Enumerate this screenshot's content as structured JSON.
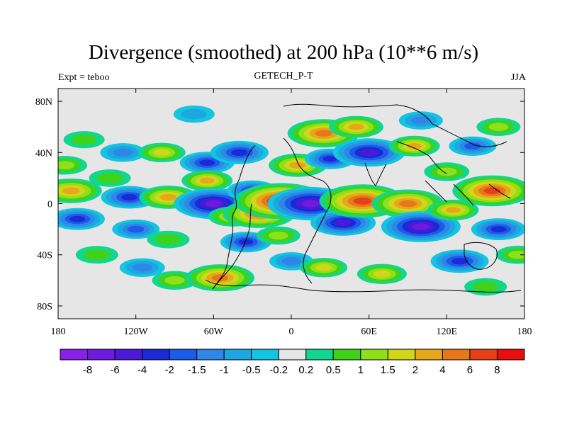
{
  "title": "Divergence (smoothed) at 200 hPa (10**6 m/s)",
  "subtitle_left": "Expt = teboo",
  "subtitle_center": "GETECH_P-T",
  "subtitle_right": "JJA",
  "chart_data": {
    "type": "heatmap",
    "projection": "cylindrical equidistant",
    "variable": "divergence",
    "level": "200 hPa",
    "units": "10**6 m/s",
    "season": "JJA",
    "xlim": [
      -180,
      180
    ],
    "ylim": [
      -90,
      90
    ],
    "x_ticks": [
      {
        "value": -180,
        "label": "180"
      },
      {
        "value": -120,
        "label": "120W"
      },
      {
        "value": -60,
        "label": "60W"
      },
      {
        "value": 0,
        "label": "0"
      },
      {
        "value": 60,
        "label": "60E"
      },
      {
        "value": 120,
        "label": "120E"
      },
      {
        "value": 180,
        "label": "180"
      }
    ],
    "y_ticks": [
      {
        "value": 80,
        "label": "80N"
      },
      {
        "value": 40,
        "label": "40N"
      },
      {
        "value": 0,
        "label": "0"
      },
      {
        "value": -40,
        "label": "40S"
      },
      {
        "value": -80,
        "label": "80S"
      }
    ],
    "colorbar": {
      "levels": [
        "-8",
        "-6",
        "-4",
        "-2",
        "-1.5",
        "-1",
        "-0.5",
        "-0.2",
        "0.2",
        "0.5",
        "1",
        "1.5",
        "2",
        "4",
        "6",
        "8"
      ],
      "colors": [
        "#8a1fe6",
        "#6e1be0",
        "#4a1ad6",
        "#1c2ad6",
        "#1a5be8",
        "#2e86e8",
        "#1ea6e0",
        "#14c4e0",
        "#e6e6e6",
        "#12d68e",
        "#3ed21a",
        "#8ee01a",
        "#d2d61a",
        "#e6a81a",
        "#e6781a",
        "#e6401a",
        "#e60e0e"
      ]
    },
    "features": [
      {
        "lon": -175,
        "lat": 30,
        "value": 1.2
      },
      {
        "lon": -170,
        "lat": 10,
        "value": 3.5
      },
      {
        "lon": -165,
        "lat": -12,
        "value": -2.5
      },
      {
        "lon": -160,
        "lat": 50,
        "value": 0.6
      },
      {
        "lon": -150,
        "lat": -40,
        "value": 0.8
      },
      {
        "lon": -140,
        "lat": 20,
        "value": 0.7
      },
      {
        "lon": -130,
        "lat": 40,
        "value": -1.2
      },
      {
        "lon": -125,
        "lat": 5,
        "value": -2.8
      },
      {
        "lon": -120,
        "lat": -20,
        "value": -1.5
      },
      {
        "lon": -115,
        "lat": -50,
        "value": -1.2
      },
      {
        "lon": -100,
        "lat": 40,
        "value": 1.5
      },
      {
        "lon": -95,
        "lat": 5,
        "value": 3.0
      },
      {
        "lon": -95,
        "lat": -28,
        "value": 0.8
      },
      {
        "lon": -90,
        "lat": -60,
        "value": 1.2
      },
      {
        "lon": -75,
        "lat": 70,
        "value": -0.6
      },
      {
        "lon": -65,
        "lat": 32,
        "value": -2.5
      },
      {
        "lon": -65,
        "lat": 18,
        "value": 2.0
      },
      {
        "lon": -60,
        "lat": 0,
        "value": -6.0
      },
      {
        "lon": -55,
        "lat": -58,
        "value": 4.5
      },
      {
        "lon": -45,
        "lat": -10,
        "value": 1.8
      },
      {
        "lon": -40,
        "lat": 40,
        "value": -3.0
      },
      {
        "lon": -35,
        "lat": -30,
        "value": -2.0
      },
      {
        "lon": -30,
        "lat": 10,
        "value": -2.0
      },
      {
        "lon": -25,
        "lat": -8,
        "value": 5.0
      },
      {
        "lon": -10,
        "lat": -25,
        "value": 1.0
      },
      {
        "lon": -8,
        "lat": 2,
        "value": 8.5
      },
      {
        "lon": 0,
        "lat": -45,
        "value": -1.0
      },
      {
        "lon": 5,
        "lat": 30,
        "value": 3.0
      },
      {
        "lon": 15,
        "lat": 0,
        "value": -7.0
      },
      {
        "lon": 20,
        "lat": 55,
        "value": -0.5
      },
      {
        "lon": 25,
        "lat": 55,
        "value": 5.0
      },
      {
        "lon": 25,
        "lat": -50,
        "value": 1.5
      },
      {
        "lon": 30,
        "lat": 35,
        "value": -2.0
      },
      {
        "lon": 40,
        "lat": -15,
        "value": -4.0
      },
      {
        "lon": 50,
        "lat": 60,
        "value": 2.5
      },
      {
        "lon": 55,
        "lat": 2,
        "value": 7.0
      },
      {
        "lon": 60,
        "lat": 40,
        "value": -5.0
      },
      {
        "lon": 70,
        "lat": -55,
        "value": 1.8
      },
      {
        "lon": 90,
        "lat": 0,
        "value": 5.0
      },
      {
        "lon": 95,
        "lat": 45,
        "value": 2.0
      },
      {
        "lon": 100,
        "lat": -18,
        "value": -6.0
      },
      {
        "lon": 100,
        "lat": 65,
        "value": -1.0
      },
      {
        "lon": 120,
        "lat": 25,
        "value": 1.2
      },
      {
        "lon": 125,
        "lat": -5,
        "value": 2.0
      },
      {
        "lon": 130,
        "lat": -45,
        "value": -3.0
      },
      {
        "lon": 140,
        "lat": 45,
        "value": -1.5
      },
      {
        "lon": 150,
        "lat": -65,
        "value": 0.8
      },
      {
        "lon": 155,
        "lat": 10,
        "value": 6.0
      },
      {
        "lon": 160,
        "lat": -20,
        "value": -2.5
      },
      {
        "lon": 160,
        "lat": 60,
        "value": 1.0
      },
      {
        "lon": 175,
        "lat": -40,
        "value": 1.0
      }
    ]
  }
}
